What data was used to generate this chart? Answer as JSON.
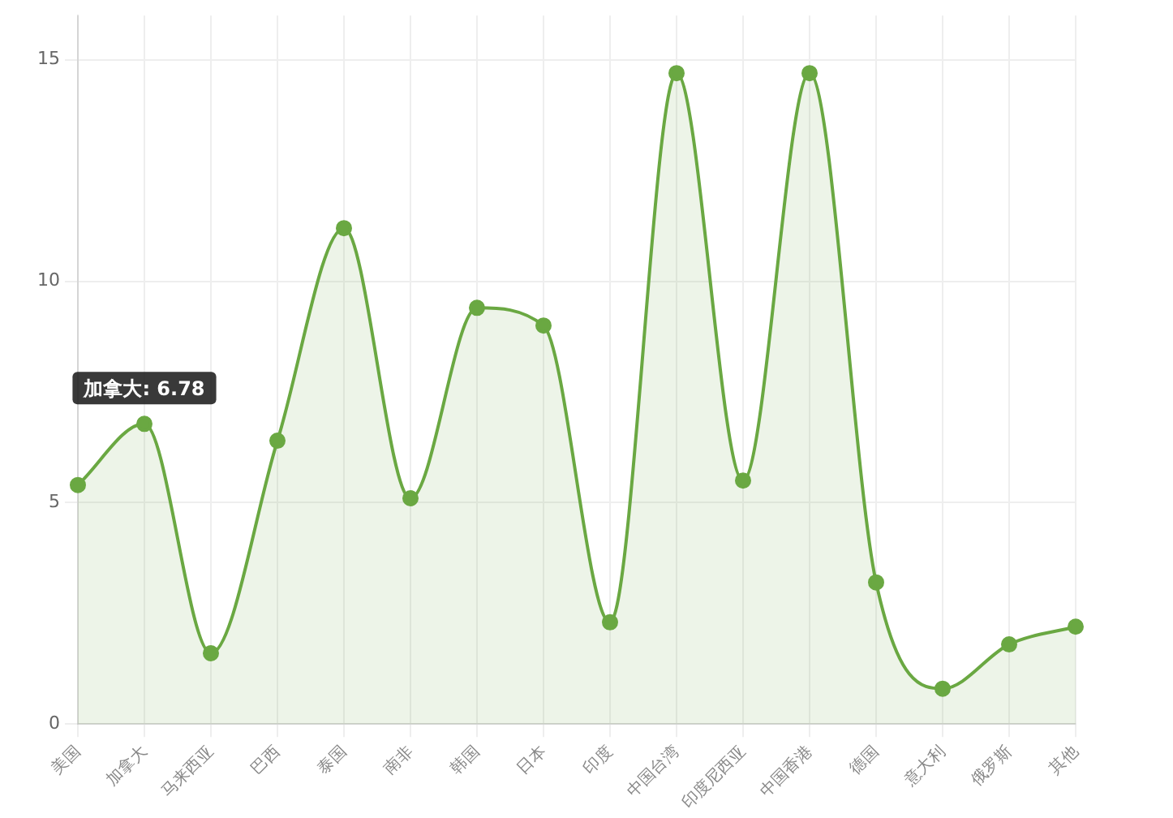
{
  "chart_data": {
    "type": "area",
    "categories": [
      "美国",
      "加拿大",
      "马来西亚",
      "巴西",
      "泰国",
      "南非",
      "韩国",
      "日本",
      "印度",
      "中国台湾",
      "印度尼西亚",
      "中国香港",
      "德国",
      "意大利",
      "俄罗斯",
      "其他"
    ],
    "series": [
      {
        "color": "#6aa842",
        "values": [
          5.4,
          6.78,
          1.6,
          6.4,
          11.2,
          5.1,
          9.4,
          9.0,
          2.3,
          14.7,
          5.5,
          14.7,
          3.2,
          0.8,
          1.8,
          2.2
        ]
      }
    ],
    "ylim": [
      0,
      16
    ],
    "yticks": [
      0,
      5,
      10,
      15
    ],
    "grid": true,
    "legend": false,
    "marker": "circle",
    "annotations": [
      {
        "text": "加拿大: 6.78",
        "x": "加拿大",
        "y": 6.78
      }
    ]
  }
}
